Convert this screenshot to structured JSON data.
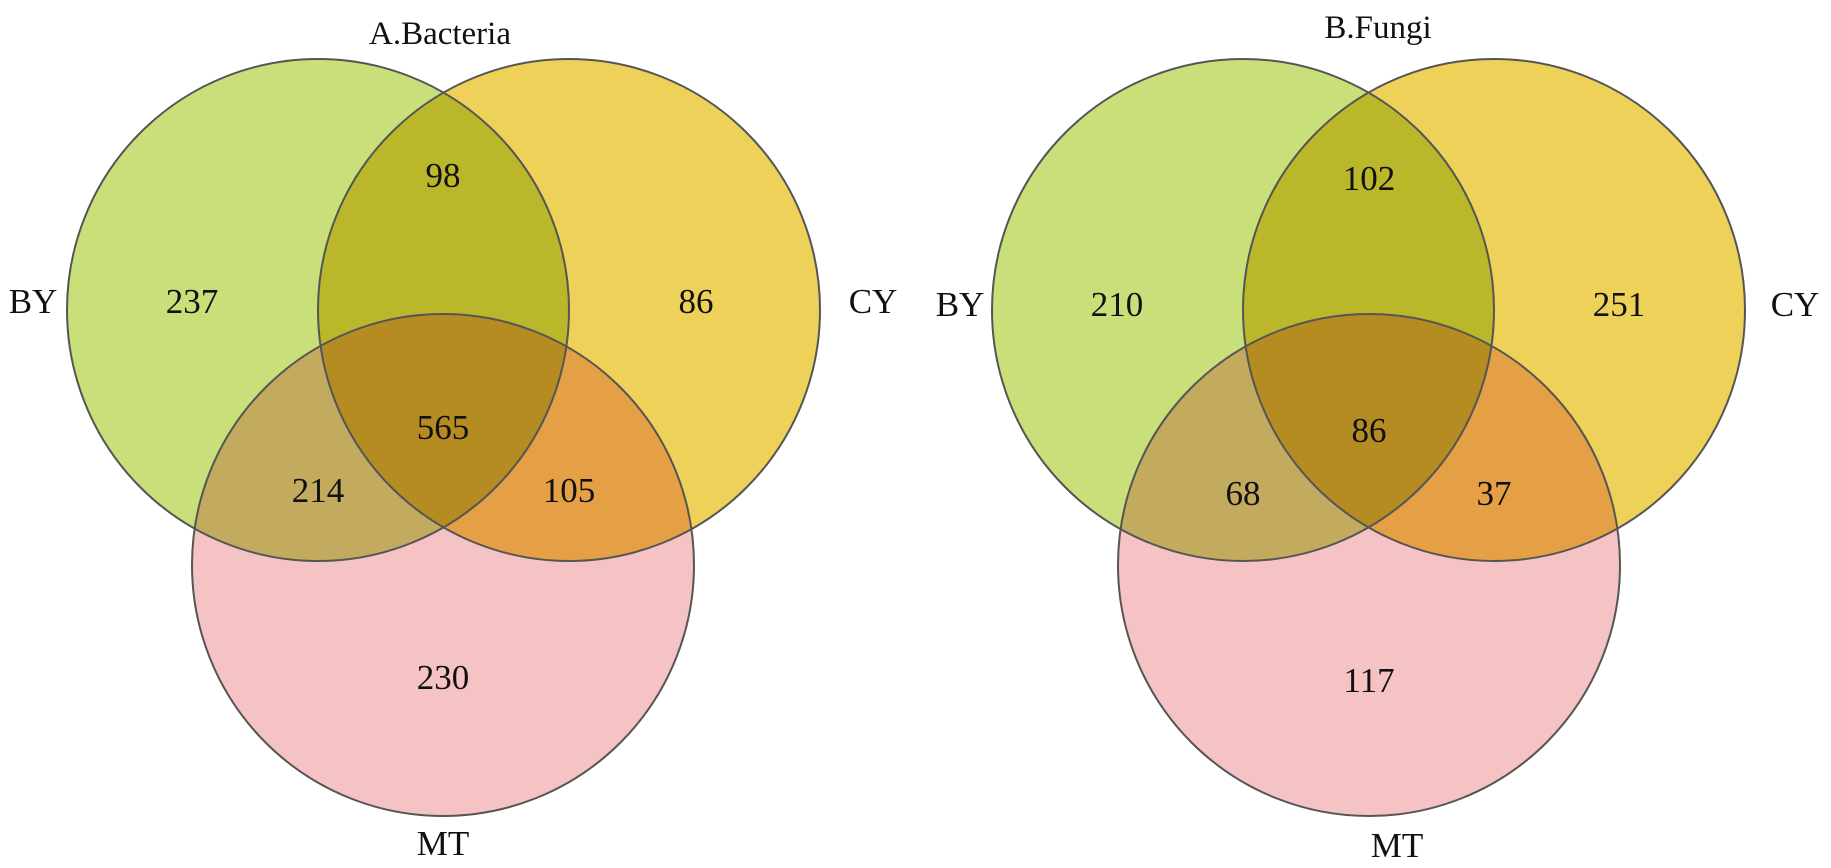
{
  "panels": [
    {
      "title": "A.Bacteria",
      "set_labels": {
        "left": "BY",
        "right": "CY",
        "bottom": "MT"
      },
      "counts": {
        "BY_only": "237",
        "CY_only": "86",
        "MT_only": "230",
        "BY_CY": "98",
        "BY_MT": "214",
        "CY_MT": "105",
        "all": "565"
      }
    },
    {
      "title": "B.Fungi",
      "set_labels": {
        "left": "BY",
        "right": "CY",
        "bottom": "MT"
      },
      "counts": {
        "BY_only": "210",
        "CY_only": "251",
        "MT_only": "117",
        "BY_CY": "102",
        "BY_MT": "68",
        "CY_MT": "37",
        "all": "86"
      }
    }
  ],
  "colors": {
    "BY": "#c9df7a",
    "CY": "#eed159",
    "MT": "#f6c3c5",
    "outline": "#555555"
  }
}
